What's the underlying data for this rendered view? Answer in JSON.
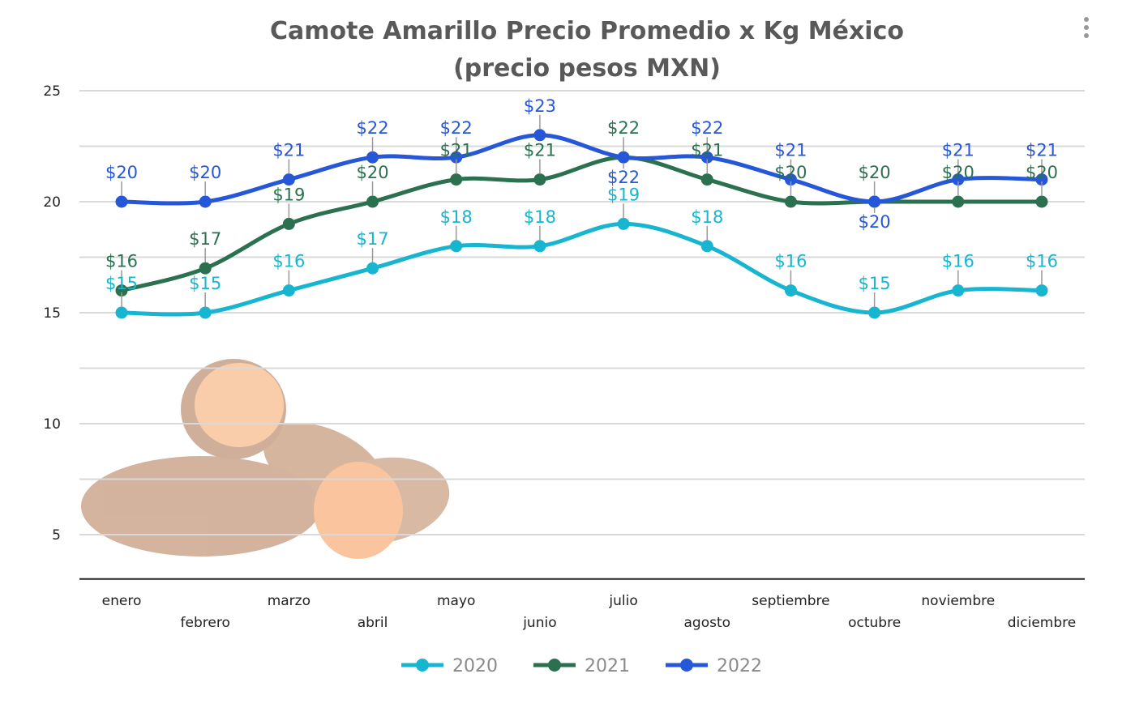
{
  "chart_data": {
    "type": "line",
    "title": [
      "Camote Amarillo Precio Promedio x Kg México",
      "(precio pesos MXN)"
    ],
    "xlabel": "",
    "ylabel": "",
    "categories": [
      "enero",
      "febrero",
      "marzo",
      "abril",
      "mayo",
      "junio",
      "julio",
      "agosto",
      "septiembre",
      "octubre",
      "noviembre",
      "diciembre"
    ],
    "yticks": [
      5,
      10,
      15,
      20,
      25
    ],
    "ylim": [
      3,
      25
    ],
    "grid": true,
    "smooth": true,
    "data_label_prefix": "$",
    "legend_position": "bottom",
    "series": [
      {
        "name": "2020",
        "color": "#17b5cf",
        "values": [
          15,
          15,
          16,
          17,
          18,
          18,
          19,
          18,
          16,
          15,
          16,
          16
        ]
      },
      {
        "name": "2021",
        "color": "#2b7150",
        "values": [
          16,
          17,
          19,
          20,
          21,
          21,
          22,
          21,
          20,
          20,
          20,
          20
        ]
      },
      {
        "name": "2022",
        "color": "#2757d9",
        "values": [
          20,
          20,
          21,
          22,
          22,
          23,
          22,
          22,
          21,
          20,
          21,
          21
        ]
      }
    ]
  },
  "menu_icon": "more-vertical-icon",
  "image": "sweet-potato-picture"
}
